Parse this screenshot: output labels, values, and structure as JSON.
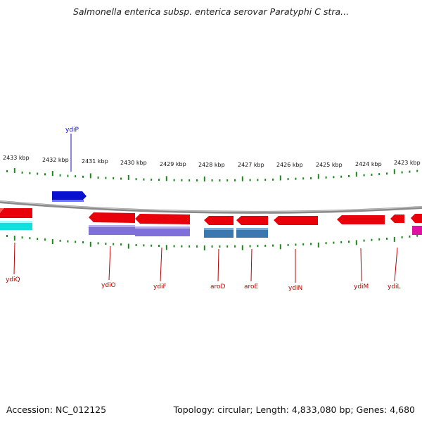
{
  "title": "Salmonella enterica subsp. enterica serovar Paratyphi C stra...",
  "footer": {
    "accession": "Accession: NC_012125",
    "summary": "Topology: circular; Length: 4,833,080 bp; Genes: 4,680"
  },
  "scale_labels": [
    "2433 kbp",
    "2432 kbp",
    "2431 kbp",
    "2430 kbp",
    "2429 kbp",
    "2428 kbp",
    "2427 kbp",
    "2426 kbp",
    "2425 kbp",
    "2424 kbp",
    "2423 kbp"
  ],
  "gene_labels": {
    "ydiP": "ydiP",
    "ydiQ": "ydiQ",
    "ydiO": "ydiO",
    "ydiF": "ydiF",
    "aroD": "aroD",
    "aroE": "aroE",
    "ydiN": "ydiN",
    "ydiM": "ydiM",
    "ydiL": "ydiL"
  },
  "colors": {
    "cds_red": "#e8000b",
    "cds_blue": "#0a10d0",
    "cds_cyan": "#10e0e0",
    "cds_purple": "#7e70d8",
    "cds_steel": "#3c78b0",
    "cds_magenta": "#e010a0",
    "tick_green": "#1a8a1a",
    "backbone": "#8a8a8a",
    "label_red": "#c00000",
    "label_blue": "#1010c0"
  }
}
